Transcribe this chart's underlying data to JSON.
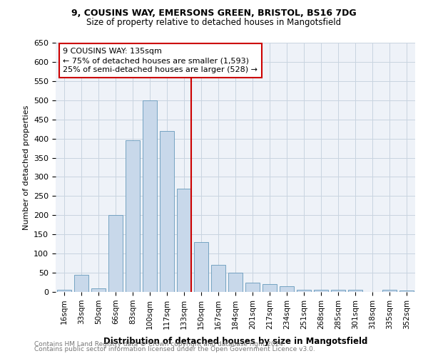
{
  "title1": "9, COUSINS WAY, EMERSONS GREEN, BRISTOL, BS16 7DG",
  "title2": "Size of property relative to detached houses in Mangotsfield",
  "xlabel": "Distribution of detached houses by size in Mangotsfield",
  "ylabel": "Number of detached properties",
  "footnote1": "Contains HM Land Registry data © Crown copyright and database right 2024.",
  "footnote2": "Contains public sector information licensed under the Open Government Licence v3.0.",
  "annotation_line1": "9 COUSINS WAY: 135sqm",
  "annotation_line2": "← 75% of detached houses are smaller (1,593)",
  "annotation_line3": "25% of semi-detached houses are larger (528) →",
  "bar_labels": [
    "16sqm",
    "33sqm",
    "50sqm",
    "66sqm",
    "83sqm",
    "100sqm",
    "117sqm",
    "133sqm",
    "150sqm",
    "167sqm",
    "184sqm",
    "201sqm",
    "217sqm",
    "234sqm",
    "251sqm",
    "268sqm",
    "285sqm",
    "301sqm",
    "318sqm",
    "335sqm",
    "352sqm"
  ],
  "bar_values": [
    5,
    45,
    10,
    200,
    395,
    500,
    420,
    270,
    130,
    70,
    50,
    25,
    20,
    15,
    5,
    5,
    5,
    5,
    0,
    5,
    4
  ],
  "bar_color": "#c8d8ea",
  "bar_edge_color": "#6699bb",
  "vline_color": "#cc0000",
  "vline_pos": 7.42,
  "ylim": [
    0,
    650
  ],
  "yticks": [
    0,
    50,
    100,
    150,
    200,
    250,
    300,
    350,
    400,
    450,
    500,
    550,
    600,
    650
  ],
  "annotation_box_color": "#cc0000",
  "grid_color": "#c8d4e0",
  "bg_color": "#eef2f8"
}
